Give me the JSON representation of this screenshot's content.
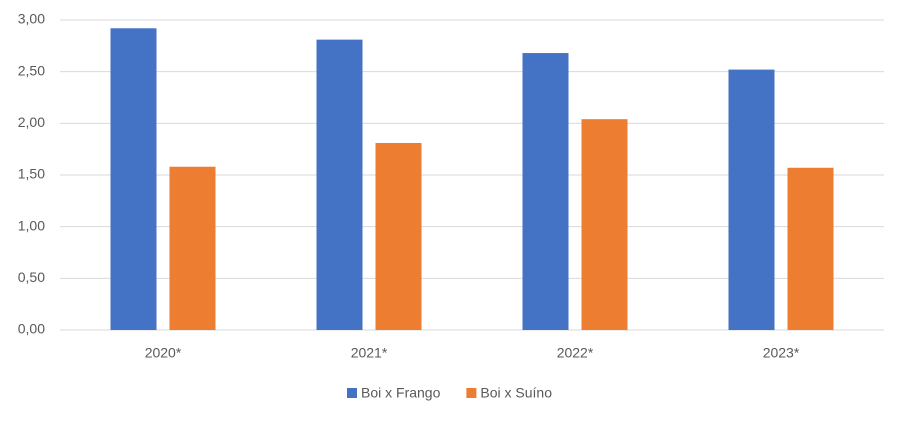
{
  "chart_data": {
    "type": "bar",
    "categories": [
      "2020*",
      "2021*",
      "2022*",
      "2023*"
    ],
    "series": [
      {
        "name": "Boi x Frango",
        "color": "#4472c4",
        "values": [
          2.92,
          2.81,
          2.68,
          2.52
        ]
      },
      {
        "name": "Boi x Suíno",
        "color": "#ed7d31",
        "values": [
          1.58,
          1.81,
          2.04,
          1.57
        ]
      }
    ],
    "ylim": [
      0,
      3
    ],
    "yticks": [
      {
        "value": 0,
        "label": "0,00"
      },
      {
        "value": 0.5,
        "label": "0,50"
      },
      {
        "value": 1,
        "label": "1,00"
      },
      {
        "value": 1.5,
        "label": "1,50"
      },
      {
        "value": 2,
        "label": "2,00"
      },
      {
        "value": 2.5,
        "label": "2,50"
      },
      {
        "value": 3,
        "label": "3,00"
      }
    ],
    "grid": true,
    "legend": "bottom"
  }
}
